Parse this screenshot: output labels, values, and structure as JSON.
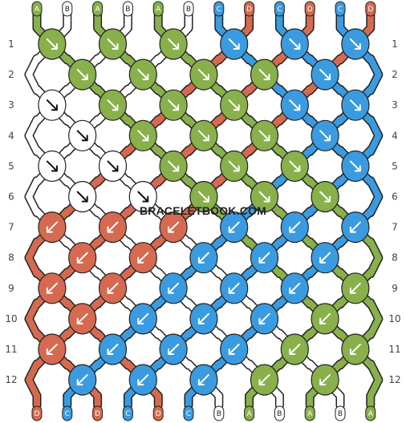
{
  "pattern": {
    "colors": {
      "A": "#88b04b",
      "B": "#ffffff",
      "C": "#3a9be0",
      "D": "#d66a50"
    },
    "top_strings": [
      "A",
      "B",
      "A",
      "B",
      "A",
      "B",
      "C",
      "D",
      "C",
      "D",
      "C",
      "D"
    ],
    "bottom_strings": [
      "D",
      "C",
      "D",
      "C",
      "D",
      "C",
      "B",
      "A",
      "B",
      "A",
      "B",
      "A"
    ],
    "row_labels": [
      "1",
      "2",
      "3",
      "4",
      "5",
      "6",
      "7",
      "8",
      "9",
      "10",
      "11",
      "12"
    ],
    "knot_rows": [
      [
        {
          "c": "A",
          "d": "se"
        },
        {
          "c": "A",
          "d": "se"
        },
        {
          "c": "A",
          "d": "se"
        },
        {
          "c": "C",
          "d": "se"
        },
        {
          "c": "C",
          "d": "se"
        },
        {
          "c": "C",
          "d": "se"
        }
      ],
      [
        {
          "c": "A",
          "d": "se"
        },
        {
          "c": "A",
          "d": "se"
        },
        {
          "c": "A",
          "d": "se"
        },
        {
          "c": "A",
          "d": "se"
        },
        {
          "c": "C",
          "d": "se"
        }
      ],
      [
        {
          "c": "B",
          "d": "se"
        },
        {
          "c": "A",
          "d": "se"
        },
        {
          "c": "A",
          "d": "se"
        },
        {
          "c": "A",
          "d": "se"
        },
        {
          "c": "C",
          "d": "se"
        },
        {
          "c": "C",
          "d": "se"
        }
      ],
      [
        {
          "c": "B",
          "d": "se"
        },
        {
          "c": "A",
          "d": "se"
        },
        {
          "c": "A",
          "d": "se"
        },
        {
          "c": "A",
          "d": "se"
        },
        {
          "c": "C",
          "d": "se"
        }
      ],
      [
        {
          "c": "B",
          "d": "se"
        },
        {
          "c": "B",
          "d": "se"
        },
        {
          "c": "A",
          "d": "se"
        },
        {
          "c": "A",
          "d": "se"
        },
        {
          "c": "A",
          "d": "se"
        },
        {
          "c": "C",
          "d": "se"
        }
      ],
      [
        {
          "c": "B",
          "d": "se"
        },
        {
          "c": "B",
          "d": "se"
        },
        {
          "c": "A",
          "d": "se"
        },
        {
          "c": "A",
          "d": "se"
        },
        {
          "c": "A",
          "d": "se"
        }
      ],
      [
        {
          "c": "D",
          "d": "sw"
        },
        {
          "c": "D",
          "d": "sw"
        },
        {
          "c": "D",
          "d": "sw"
        },
        {
          "c": "C",
          "d": "sw"
        },
        {
          "c": "C",
          "d": "sw"
        },
        {
          "c": "C",
          "d": "sw"
        }
      ],
      [
        {
          "c": "D",
          "d": "sw"
        },
        {
          "c": "D",
          "d": "sw"
        },
        {
          "c": "C",
          "d": "sw"
        },
        {
          "c": "C",
          "d": "sw"
        },
        {
          "c": "C",
          "d": "sw"
        }
      ],
      [
        {
          "c": "D",
          "d": "sw"
        },
        {
          "c": "D",
          "d": "sw"
        },
        {
          "c": "C",
          "d": "sw"
        },
        {
          "c": "C",
          "d": "sw"
        },
        {
          "c": "C",
          "d": "sw"
        },
        {
          "c": "A",
          "d": "sw"
        }
      ],
      [
        {
          "c": "D",
          "d": "sw"
        },
        {
          "c": "C",
          "d": "sw"
        },
        {
          "c": "C",
          "d": "sw"
        },
        {
          "c": "C",
          "d": "sw"
        },
        {
          "c": "A",
          "d": "sw"
        }
      ],
      [
        {
          "c": "D",
          "d": "sw"
        },
        {
          "c": "C",
          "d": "sw"
        },
        {
          "c": "C",
          "d": "sw"
        },
        {
          "c": "C",
          "d": "sw"
        },
        {
          "c": "A",
          "d": "sw"
        },
        {
          "c": "A",
          "d": "sw"
        }
      ],
      [
        {
          "c": "C",
          "d": "sw"
        },
        {
          "c": "C",
          "d": "sw"
        },
        {
          "c": "C",
          "d": "sw"
        },
        {
          "c": "A",
          "d": "sw"
        },
        {
          "c": "A",
          "d": "sw"
        }
      ]
    ],
    "watermark": "BRACELETBOOK.COM"
  }
}
